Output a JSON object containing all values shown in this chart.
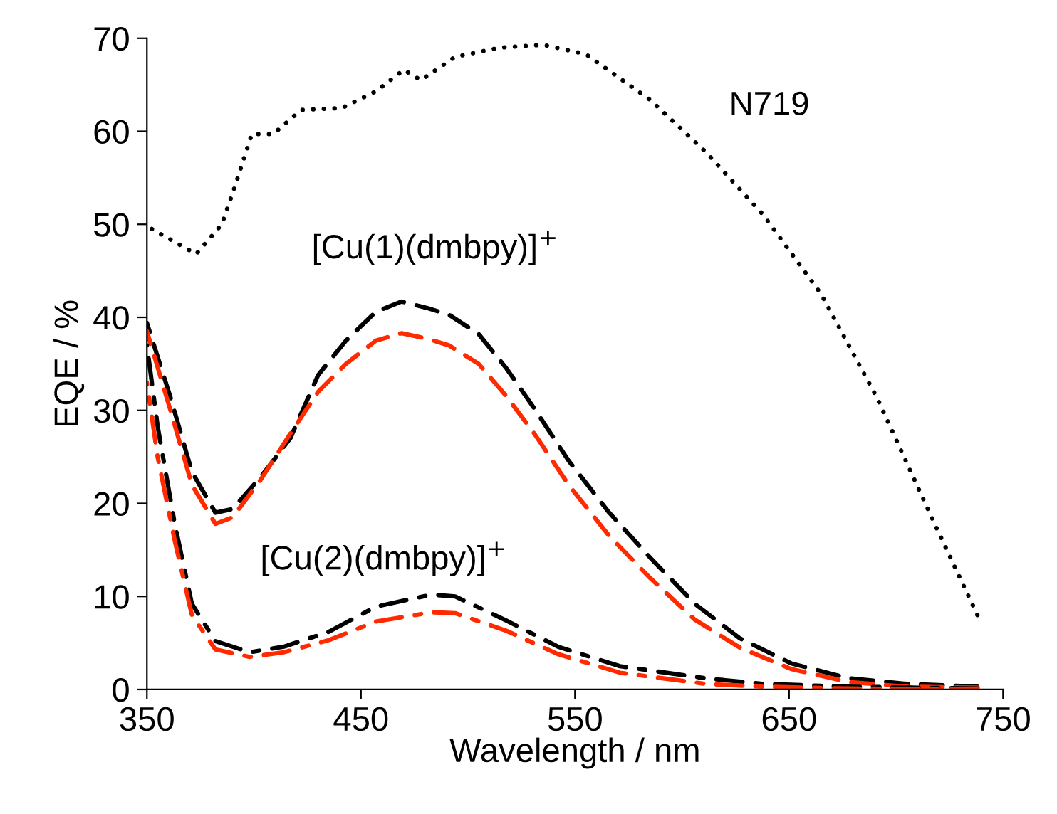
{
  "chart_data": {
    "type": "line",
    "xlabel": "Wavelength / nm",
    "ylabel": "EQE / %",
    "xlim": [
      350,
      750
    ],
    "xticks": [
      350,
      450,
      550,
      650,
      750
    ],
    "ylim": [
      0,
      70
    ],
    "yticks": [
      0,
      10,
      20,
      30,
      40,
      50,
      60,
      70
    ],
    "grid": false,
    "legend": false,
    "marker": "none",
    "series": [
      {
        "name": "N719",
        "color": "#000000",
        "line_style": "dotted",
        "x": [
          350,
          373,
          385,
          391,
          399,
          409,
          422,
          441,
          457,
          470,
          478,
          494,
          515,
          535,
          555,
          585,
          611,
          638,
          665,
          691,
          718,
          738
        ],
        "values": [
          49.8,
          46.8,
          50,
          54,
          59.7,
          59.7,
          62.3,
          62.5,
          64.3,
          66.6,
          65.5,
          68,
          69,
          69.3,
          68.3,
          63.4,
          57.8,
          51,
          42.5,
          31.4,
          17.8,
          8
        ]
      },
      {
        "name": "[Cu(1)(dmbpy)]$^{+}$",
        "color": "#000000",
        "line_style": "dashed",
        "x": [
          350,
          361,
          371,
          382,
          390,
          403,
          417,
          430,
          443,
          457,
          469,
          481,
          491,
          505,
          518,
          531,
          547,
          566,
          585,
          606,
          627,
          651,
          678,
          705,
          738
        ],
        "values": [
          39.4,
          31.4,
          23.4,
          19,
          19.4,
          22.8,
          27,
          33.8,
          37.5,
          40.6,
          41.7,
          41,
          40.3,
          38.2,
          34.5,
          30.2,
          24.6,
          19,
          14.2,
          9.2,
          5.5,
          2.8,
          1.2,
          0.6,
          0.3
        ]
      },
      {
        "color": "#ff2a00",
        "line_style": "dashed",
        "x": [
          350,
          361,
          371,
          382,
          390,
          403,
          417,
          430,
          443,
          457,
          469,
          481,
          491,
          505,
          518,
          531,
          547,
          566,
          585,
          606,
          627,
          651,
          678,
          705,
          738
        ],
        "values": [
          38.5,
          30,
          22,
          17.8,
          18.5,
          22.5,
          27.5,
          32,
          35,
          37.5,
          38.3,
          37.7,
          37,
          35,
          31.5,
          27.5,
          22,
          16.5,
          12,
          7.5,
          4.5,
          2.2,
          0.8,
          0.3,
          0.2
        ]
      },
      {
        "name": "[Cu(2)(dmbpy)]$^{+}$",
        "color": "#000000",
        "line_style": "dashdot",
        "x": [
          350,
          355,
          363,
          371,
          382,
          398,
          414,
          435,
          457,
          483,
          494,
          518,
          542,
          571,
          611,
          638,
          678,
          738
        ],
        "values": [
          37,
          28.3,
          17.8,
          9.2,
          5.2,
          4,
          4.6,
          6.2,
          8.9,
          10.2,
          10,
          7.4,
          4.6,
          2.5,
          1.2,
          0.6,
          0.3,
          0.1
        ]
      },
      {
        "color": "#ff2a00",
        "line_style": "dashdot",
        "x": [
          350,
          355,
          363,
          371,
          382,
          398,
          414,
          435,
          457,
          483,
          494,
          518,
          542,
          571,
          611,
          638,
          678,
          738
        ],
        "values": [
          33,
          25,
          16,
          8,
          4.3,
          3.5,
          4,
          5.3,
          7.3,
          8.3,
          8.2,
          6.3,
          3.8,
          1.8,
          0.6,
          0.3,
          0.1,
          0
        ]
      }
    ]
  }
}
